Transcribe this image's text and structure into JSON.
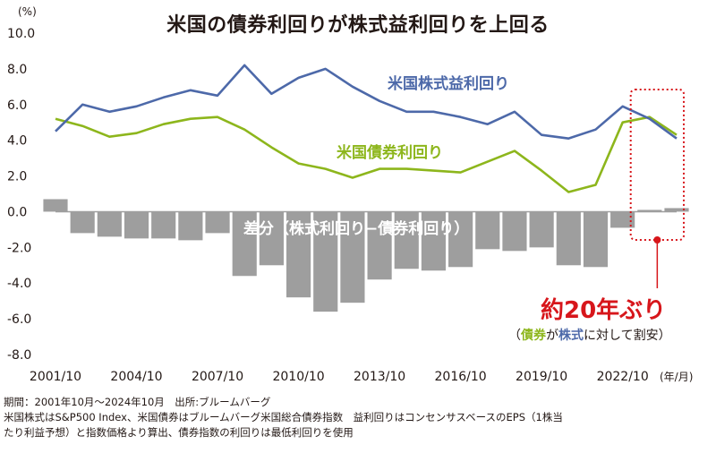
{
  "title": "米国の債券利回りが株式益利回りを上回る",
  "unit_label": "(%)",
  "x_unit": "(年/月)",
  "series_labels": {
    "earnings": "米国株式益利回り",
    "bond": "米国債券利回り",
    "spread": "差分（株式利回り−債券利回り）"
  },
  "callout": {
    "main": "約20年ぶり",
    "sub_open": "（",
    "sub_bond": "債券",
    "sub_ga": "が",
    "sub_stock": "株式",
    "sub_rest": "に対して割安）"
  },
  "notes": {
    "line1": "期間：2001年10月〜2024年10月　出所:ブルームバーグ",
    "line2": "米国株式はS&P500 Index、米国債券はブルームバーグ米国総合債券指数　益利回りはコンセンサスベースのEPS（1株当",
    "line3": "たり利益予想）と指数価格より算出、債券指数の利回りは最低利回りを使用"
  },
  "colors": {
    "earnings": "#4d69a9",
    "bond": "#8db61c",
    "spread": "#9e9e9e",
    "highlight": "#d7161b",
    "zero_line": "#9e9e9e"
  },
  "chart_data": {
    "type": "line",
    "x": [
      "2001/10",
      "2002/10",
      "2003/10",
      "2004/10",
      "2005/10",
      "2006/10",
      "2007/10",
      "2008/10",
      "2009/10",
      "2010/10",
      "2011/10",
      "2012/10",
      "2013/10",
      "2014/10",
      "2015/10",
      "2016/10",
      "2017/10",
      "2018/10",
      "2019/10",
      "2020/10",
      "2021/10",
      "2022/10",
      "2023/10",
      "2024/10"
    ],
    "xticks": [
      "2001/10",
      "2004/10",
      "2007/10",
      "2010/10",
      "2013/10",
      "2016/10",
      "2019/10",
      "2022/10"
    ],
    "ylim": [
      -8.0,
      10.0
    ],
    "yticks": [
      "10.0",
      "8.0",
      "6.0",
      "4.0",
      "2.0",
      "0.0",
      "-2.0",
      "-4.0",
      "-6.0",
      "-8.0"
    ],
    "series": [
      {
        "name": "米国株式益利回り",
        "values": [
          4.5,
          6.0,
          5.6,
          5.9,
          6.4,
          6.8,
          6.5,
          8.2,
          6.6,
          7.5,
          8.0,
          7.0,
          6.2,
          5.6,
          5.6,
          5.3,
          4.9,
          5.6,
          4.3,
          4.1,
          4.6,
          5.9,
          5.2,
          4.1
        ]
      },
      {
        "name": "米国債券利回り",
        "values": [
          5.2,
          4.8,
          4.2,
          4.4,
          4.9,
          5.2,
          5.3,
          4.6,
          3.6,
          2.7,
          2.4,
          1.9,
          2.4,
          2.4,
          2.3,
          2.2,
          2.8,
          3.4,
          2.3,
          1.1,
          1.5,
          5.0,
          5.3,
          4.3
        ]
      },
      {
        "name": "差分（株式利回り−債券利回り）",
        "values": [
          -0.7,
          1.2,
          1.4,
          1.5,
          1.5,
          1.6,
          1.2,
          3.6,
          3.0,
          4.8,
          5.6,
          5.1,
          3.8,
          3.2,
          3.3,
          3.1,
          2.1,
          2.2,
          2.0,
          3.0,
          3.1,
          0.9,
          -0.1,
          -0.2
        ]
      }
    ],
    "note": "spread values plotted downward from 0 (negative = equities above bonds shown below axis)"
  }
}
